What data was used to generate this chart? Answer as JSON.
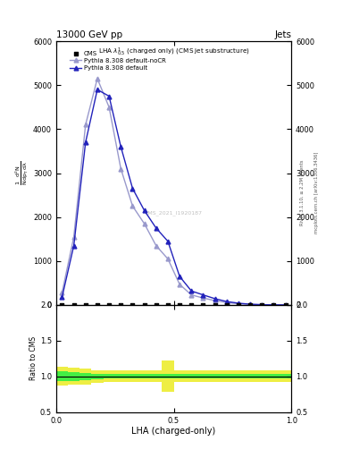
{
  "title_top_left": "13000 GeV pp",
  "title_top_right": "Jets",
  "plot_title": "LHA $\\lambda^{1}_{0.5}$ (charged only) (CMS jet substructure)",
  "xlabel": "LHA (charged-only)",
  "ylabel_ratio": "Ratio to CMS",
  "right_label_top": "Rivet 3.1.10, ≥ 2.2M events",
  "right_label_bot": "mcplots.cern.ch [arXiv:1306.3436]",
  "watermark": "CMS_2021_I1920187",
  "cms_data_x": [
    0.025,
    0.075,
    0.125,
    0.175,
    0.225,
    0.275,
    0.325,
    0.375,
    0.425,
    0.475,
    0.525,
    0.575,
    0.625,
    0.675,
    0.725,
    0.775,
    0.825,
    0.875,
    0.925,
    0.975
  ],
  "cms_data_y": [
    2,
    2,
    2,
    2,
    2,
    2,
    2,
    2,
    2,
    2,
    2,
    2,
    2,
    2,
    2,
    2,
    2,
    2,
    2,
    2
  ],
  "pythia_default_x": [
    0.025,
    0.075,
    0.125,
    0.175,
    0.225,
    0.275,
    0.325,
    0.375,
    0.425,
    0.475,
    0.525,
    0.575,
    0.625,
    0.675,
    0.725,
    0.775,
    0.825,
    0.875,
    0.925,
    0.975
  ],
  "pythia_default_y": [
    180,
    1350,
    3700,
    4900,
    4750,
    3600,
    2650,
    2150,
    1750,
    1450,
    650,
    320,
    230,
    145,
    80,
    42,
    18,
    8,
    4,
    2
  ],
  "pythia_nocr_x": [
    0.025,
    0.075,
    0.125,
    0.175,
    0.225,
    0.275,
    0.325,
    0.375,
    0.425,
    0.475,
    0.525,
    0.575,
    0.625,
    0.675,
    0.725,
    0.775,
    0.825,
    0.875,
    0.925,
    0.975
  ],
  "pythia_nocr_y": [
    280,
    1550,
    4100,
    5150,
    4500,
    3100,
    2250,
    1850,
    1350,
    1050,
    470,
    230,
    160,
    100,
    58,
    30,
    13,
    7,
    3,
    1
  ],
  "ratio_x_edges": [
    0.0,
    0.05,
    0.1,
    0.15,
    0.2,
    0.25,
    0.3,
    0.35,
    0.4,
    0.45,
    0.5,
    0.55,
    0.6,
    0.65,
    0.7,
    0.75,
    0.8,
    0.85,
    0.9,
    0.95,
    1.0
  ],
  "ratio_green_low": [
    0.93,
    0.94,
    0.95,
    0.96,
    0.97,
    0.97,
    0.97,
    0.97,
    0.97,
    0.97,
    0.97,
    0.97,
    0.97,
    0.97,
    0.97,
    0.97,
    0.97,
    0.97,
    0.97,
    0.97
  ],
  "ratio_green_high": [
    1.07,
    1.06,
    1.05,
    1.04,
    1.03,
    1.03,
    1.03,
    1.03,
    1.03,
    1.03,
    1.03,
    1.03,
    1.03,
    1.03,
    1.03,
    1.03,
    1.03,
    1.03,
    1.03,
    1.03
  ],
  "ratio_yellow_low": [
    0.87,
    0.88,
    0.89,
    0.91,
    0.92,
    0.92,
    0.92,
    0.92,
    0.92,
    0.78,
    0.92,
    0.92,
    0.92,
    0.92,
    0.92,
    0.92,
    0.92,
    0.92,
    0.92,
    0.92
  ],
  "ratio_yellow_high": [
    1.13,
    1.12,
    1.11,
    1.09,
    1.08,
    1.08,
    1.08,
    1.08,
    1.08,
    1.22,
    1.08,
    1.08,
    1.08,
    1.08,
    1.08,
    1.08,
    1.08,
    1.08,
    1.08,
    1.08
  ],
  "color_default": "#2222bb",
  "color_nocr": "#9999cc",
  "color_cms": "black",
  "color_green": "#44ee44",
  "color_yellow": "#eeee44",
  "ylim_main": [
    0,
    6000
  ],
  "yticks_main": [
    0,
    1000,
    2000,
    3000,
    4000,
    5000,
    6000
  ],
  "ylim_ratio": [
    0.5,
    2.0
  ],
  "yticks_ratio": [
    0.5,
    1.0,
    1.5,
    2.0
  ],
  "xlim": [
    0.0,
    1.0
  ],
  "xticks": [
    0.0,
    0.5,
    1.0
  ]
}
